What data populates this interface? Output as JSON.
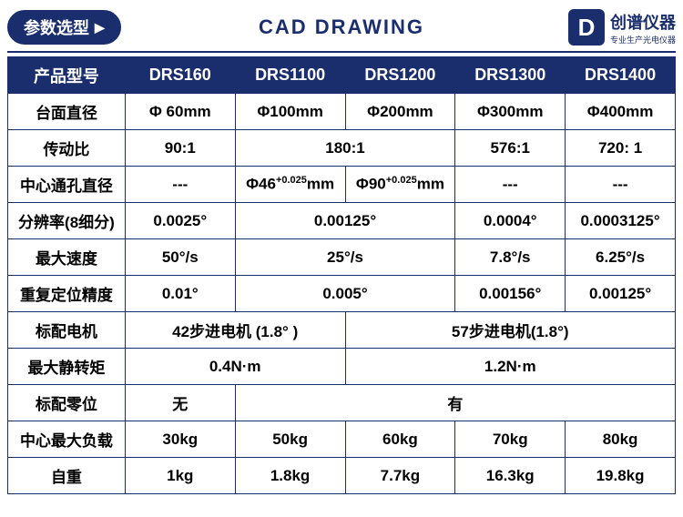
{
  "header": {
    "badge": "参数选型",
    "title": "CAD DRAWING",
    "logo_main": "创谱仪器",
    "logo_sub": "专业生产光电仪器"
  },
  "colors": {
    "brand": "#1a2e6e",
    "bg": "#ffffff",
    "text": "#000000"
  },
  "table": {
    "header_label": "产品型号",
    "models": [
      "DRS160",
      "DRS1100",
      "DRS1200",
      "DRS1300",
      "DRS1400"
    ],
    "rows": {
      "diameter": {
        "label": "台面直径",
        "v": [
          "Φ 60mm",
          "Φ100mm",
          "Φ200mm",
          "Φ300mm",
          "Φ400mm"
        ]
      },
      "ratio": {
        "label": "传动比",
        "cells": [
          {
            "t": "90:1",
            "s": 1
          },
          {
            "t": "180:1",
            "s": 2
          },
          {
            "t": "576:1",
            "s": 1
          },
          {
            "t": "720: 1",
            "s": 1
          }
        ]
      },
      "bore": {
        "label": "中心通孔直径",
        "cells": [
          {
            "html": "---",
            "s": 1
          },
          {
            "html": "Φ46<span class='sup'>+0.025</span>mm",
            "s": 1
          },
          {
            "html": "Φ90<span class='sup'>+0.025</span>mm",
            "s": 1
          },
          {
            "html": "---",
            "s": 1
          },
          {
            "html": "---",
            "s": 1
          }
        ]
      },
      "resolution": {
        "label": "分辨率(8细分)",
        "cells": [
          {
            "t": "0.0025°",
            "s": 1
          },
          {
            "t": "0.00125°",
            "s": 2
          },
          {
            "t": "0.0004°",
            "s": 1
          },
          {
            "t": "0.0003125°",
            "s": 1
          }
        ]
      },
      "speed": {
        "label": "最大速度",
        "cells": [
          {
            "t": "50°/s",
            "s": 1
          },
          {
            "t": "25°/s",
            "s": 2
          },
          {
            "t": "7.8°/s",
            "s": 1
          },
          {
            "t": "6.25°/s",
            "s": 1
          }
        ]
      },
      "repeat": {
        "label": "重复定位精度",
        "cells": [
          {
            "t": "0.01°",
            "s": 1
          },
          {
            "t": "0.005°",
            "s": 2
          },
          {
            "t": "0.00156°",
            "s": 1
          },
          {
            "t": "0.00125°",
            "s": 1
          }
        ]
      },
      "motor": {
        "label": "标配电机",
        "cells": [
          {
            "t": "42步进电机 (1.8° )",
            "s": 2
          },
          {
            "t": "57步进电机(1.8°)",
            "s": 3
          }
        ]
      },
      "torque": {
        "label": "最大静转矩",
        "cells": [
          {
            "t": "0.4N·m",
            "s": 2
          },
          {
            "t": "1.2N·m",
            "s": 3
          }
        ]
      },
      "zero": {
        "label": "标配零位",
        "cells": [
          {
            "t": "无",
            "s": 1
          },
          {
            "t": "有",
            "s": 4
          }
        ]
      },
      "load": {
        "label": "中心最大负载",
        "v": [
          "30kg",
          "50kg",
          "60kg",
          "70kg",
          "80kg"
        ]
      },
      "weight": {
        "label": "自重",
        "v": [
          "1kg",
          "1.8kg",
          "7.7kg",
          "16.3kg",
          "19.8kg"
        ]
      }
    }
  }
}
